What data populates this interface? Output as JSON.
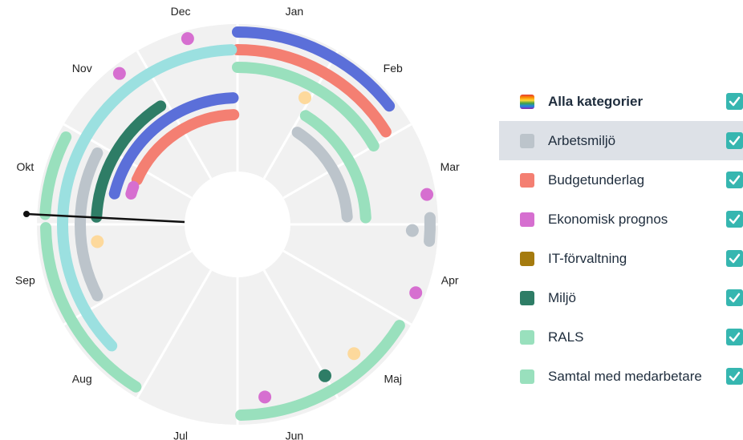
{
  "wheel": {
    "months": [
      "Jan",
      "Feb",
      "Mar",
      "Apr",
      "Maj",
      "Jun",
      "Jul",
      "Aug",
      "Sep",
      "Okt",
      "Nov",
      "Dec"
    ]
  },
  "legend": {
    "items": [
      {
        "label": "Alla kategorier",
        "color": "rainbow",
        "checked": true
      },
      {
        "label": "Arbetsmiljö",
        "color": "#bcc4cb",
        "checked": true,
        "selected": true
      },
      {
        "label": "Budgetunderlag",
        "color": "#f47f72",
        "checked": true
      },
      {
        "label": "Ekonomisk prognos",
        "color": "#d66fd0",
        "checked": true
      },
      {
        "label": "IT-förvaltning",
        "color": "#a57b0f",
        "checked": true
      },
      {
        "label": "Miljö",
        "color": "#2e7d66",
        "checked": true
      },
      {
        "label": "RALS",
        "color": "#99e0bd",
        "checked": true
      },
      {
        "label": "Samtal med medarbetare",
        "color": "#99e0bd",
        "checked": true
      }
    ]
  }
}
